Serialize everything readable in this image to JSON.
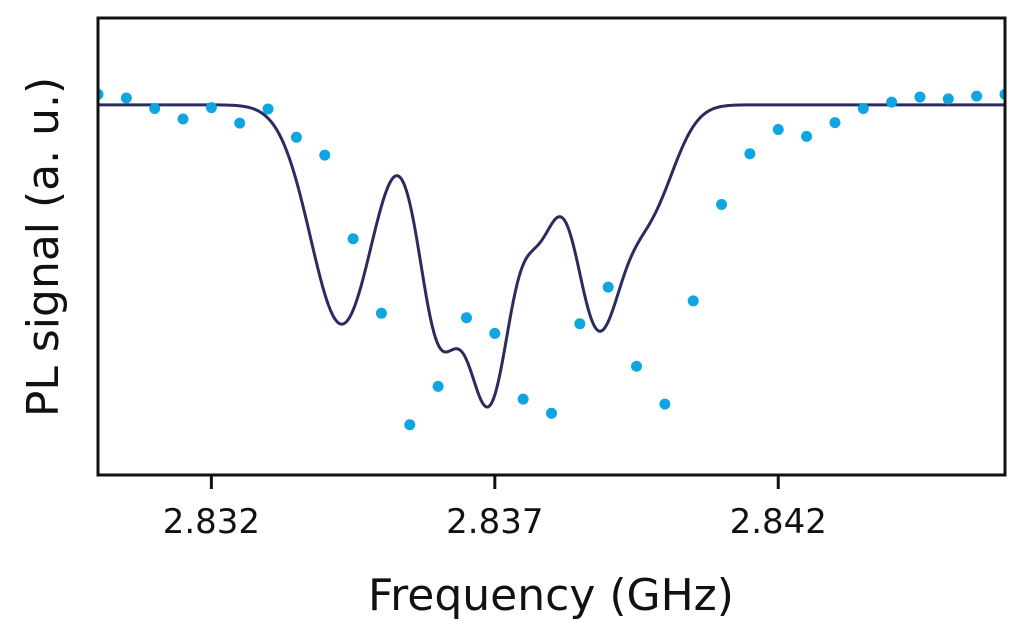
{
  "chart_data": {
    "type": "scatter",
    "title": "",
    "xlabel": "Frequency (GHz)",
    "ylabel": "PL signal (a. u.)",
    "xlim": [
      2.83,
      2.846
    ],
    "ylim": [
      0.0,
      1.0
    ],
    "x_ticks": [
      2.832,
      2.837,
      2.842
    ],
    "x_tick_labels": [
      "2.832",
      "2.837",
      "2.842"
    ],
    "y_ticks_shown": false,
    "grid": false,
    "legend": "none",
    "colors": {
      "measured_points": "#0ea5e0",
      "fit_line": "#2b2c5e",
      "axes": "#111111",
      "background": "#ffffff"
    },
    "series": [
      {
        "style": "markers",
        "x": [
          2.83,
          2.8305,
          2.831,
          2.8315,
          2.832,
          2.8325,
          2.833,
          2.8335,
          2.834,
          2.8345,
          2.835,
          2.8355,
          2.836,
          2.8365,
          2.837,
          2.8375,
          2.838,
          2.8385,
          2.839,
          2.8395,
          2.84,
          2.8405,
          2.841,
          2.8415,
          2.842,
          2.8425,
          2.843,
          2.8435,
          2.844,
          2.8445,
          2.845,
          2.8455,
          2.846
        ],
        "y": [
          0.833,
          0.825,
          0.802,
          0.779,
          0.804,
          0.77,
          0.801,
          0.739,
          0.7,
          0.517,
          0.354,
          0.11,
          0.194,
          0.344,
          0.31,
          0.166,
          0.135,
          0.331,
          0.411,
          0.238,
          0.155,
          0.381,
          0.592,
          0.703,
          0.756,
          0.741,
          0.771,
          0.802,
          0.816,
          0.827,
          0.823,
          0.829,
          0.833
        ]
      },
      {
        "style": "line",
        "model": "fit",
        "baseline": 0.81,
        "dips": [
          {
            "center": 2.8343,
            "depth": 0.48,
            "width": 0.00055
          },
          {
            "center": 2.836,
            "depth": 0.47,
            "width": 0.00035
          },
          {
            "center": 2.8369,
            "depth": 0.64,
            "width": 0.0004
          },
          {
            "center": 2.8378,
            "depth": 0.23,
            "width": 0.0003
          },
          {
            "center": 2.8388,
            "depth": 0.46,
            "width": 0.0004
          },
          {
            "center": 2.8397,
            "depth": 0.23,
            "width": 0.00045
          }
        ]
      }
    ]
  }
}
